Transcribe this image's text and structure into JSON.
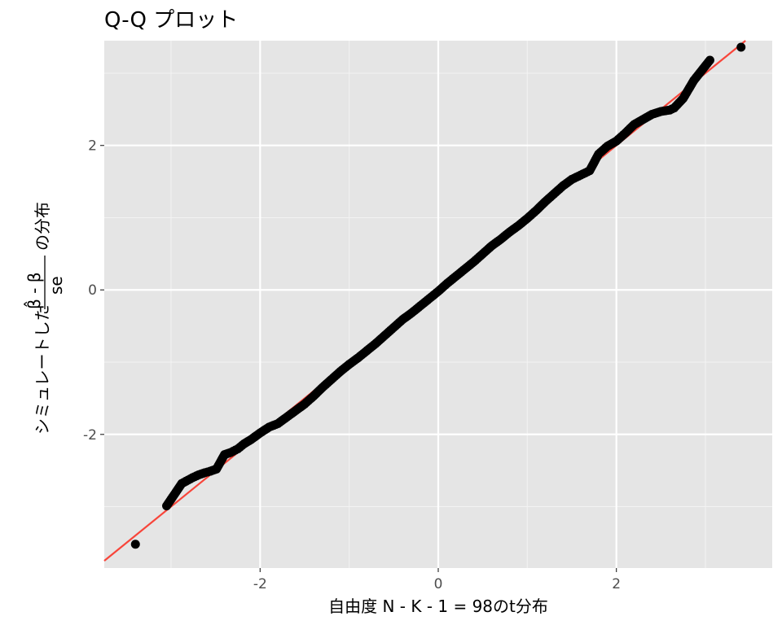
{
  "chart_data": {
    "type": "scatter",
    "title": "Q-Q プロット",
    "xlabel": "自由度 N - K - 1 = 98のt分布",
    "ylabel": {
      "prefix": "シミュレートした",
      "numerator": "β̂ - β",
      "denominator": "se",
      "suffix": "の分布"
    },
    "xlim": [
      -3.75,
      3.75
    ],
    "ylim": [
      -3.85,
      3.45
    ],
    "x_ticks": [
      -2,
      0,
      2
    ],
    "x_tick_labels": [
      "-2",
      "0",
      "2"
    ],
    "y_ticks": [
      -2,
      0,
      2
    ],
    "y_tick_labels": [
      "-2",
      "0",
      "2"
    ],
    "grid": true,
    "reference_line": {
      "slope": 1.0,
      "intercept": 0.0,
      "color": "#F8453A"
    },
    "point_color": "#000000",
    "panel_color": "#E5E5E5",
    "points": [
      {
        "x": -3.4,
        "y": -3.52
      },
      {
        "x": -3.05,
        "y": -2.99
      },
      {
        "x": -2.88,
        "y": -2.68
      },
      {
        "x": -2.76,
        "y": -2.6
      },
      {
        "x": -2.69,
        "y": -2.56
      },
      {
        "x": -2.62,
        "y": -2.53
      },
      {
        "x": -2.56,
        "y": -2.51
      },
      {
        "x": -2.49,
        "y": -2.48
      },
      {
        "x": -2.4,
        "y": -2.28
      },
      {
        "x": -2.33,
        "y": -2.25
      },
      {
        "x": -2.25,
        "y": -2.2
      },
      {
        "x": -2.18,
        "y": -2.13
      },
      {
        "x": -2.1,
        "y": -2.07
      },
      {
        "x": -2.0,
        "y": -1.98
      },
      {
        "x": -1.9,
        "y": -1.9
      },
      {
        "x": -1.8,
        "y": -1.85
      },
      {
        "x": -1.7,
        "y": -1.76
      },
      {
        "x": -1.6,
        "y": -1.67
      },
      {
        "x": -1.5,
        "y": -1.58
      },
      {
        "x": -1.4,
        "y": -1.47
      },
      {
        "x": -1.3,
        "y": -1.35
      },
      {
        "x": -1.2,
        "y": -1.24
      },
      {
        "x": -1.1,
        "y": -1.13
      },
      {
        "x": -1.0,
        "y": -1.03
      },
      {
        "x": -0.9,
        "y": -0.94
      },
      {
        "x": -0.8,
        "y": -0.84
      },
      {
        "x": -0.7,
        "y": -0.74
      },
      {
        "x": -0.6,
        "y": -0.63
      },
      {
        "x": -0.5,
        "y": -0.52
      },
      {
        "x": -0.4,
        "y": -0.41
      },
      {
        "x": -0.3,
        "y": -0.32
      },
      {
        "x": -0.2,
        "y": -0.22
      },
      {
        "x": -0.1,
        "y": -0.12
      },
      {
        "x": 0.0,
        "y": -0.02
      },
      {
        "x": 0.1,
        "y": 0.09
      },
      {
        "x": 0.2,
        "y": 0.19
      },
      {
        "x": 0.3,
        "y": 0.29
      },
      {
        "x": 0.4,
        "y": 0.39
      },
      {
        "x": 0.5,
        "y": 0.5
      },
      {
        "x": 0.6,
        "y": 0.61
      },
      {
        "x": 0.7,
        "y": 0.7
      },
      {
        "x": 0.8,
        "y": 0.8
      },
      {
        "x": 0.9,
        "y": 0.89
      },
      {
        "x": 1.0,
        "y": 0.99
      },
      {
        "x": 1.1,
        "y": 1.1
      },
      {
        "x": 1.2,
        "y": 1.22
      },
      {
        "x": 1.3,
        "y": 1.33
      },
      {
        "x": 1.4,
        "y": 1.44
      },
      {
        "x": 1.5,
        "y": 1.53
      },
      {
        "x": 1.6,
        "y": 1.59
      },
      {
        "x": 1.7,
        "y": 1.65
      },
      {
        "x": 1.8,
        "y": 1.88
      },
      {
        "x": 1.9,
        "y": 1.99
      },
      {
        "x": 2.0,
        "y": 2.06
      },
      {
        "x": 2.1,
        "y": 2.17
      },
      {
        "x": 2.2,
        "y": 2.29
      },
      {
        "x": 2.3,
        "y": 2.36
      },
      {
        "x": 2.4,
        "y": 2.43
      },
      {
        "x": 2.5,
        "y": 2.47
      },
      {
        "x": 2.6,
        "y": 2.49
      },
      {
        "x": 2.65,
        "y": 2.52
      },
      {
        "x": 2.75,
        "y": 2.65
      },
      {
        "x": 2.87,
        "y": 2.9
      },
      {
        "x": 3.05,
        "y": 3.18
      },
      {
        "x": 3.4,
        "y": 3.36
      }
    ]
  }
}
